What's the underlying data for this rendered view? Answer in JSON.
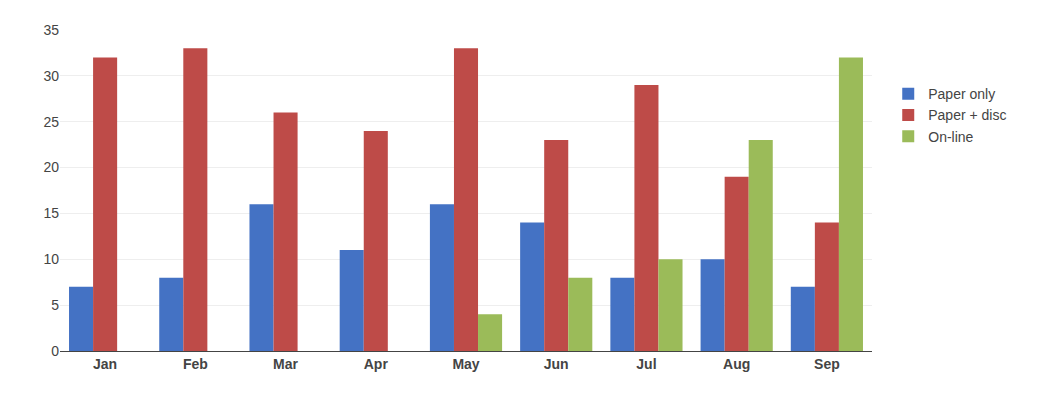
{
  "chart_data": {
    "type": "bar",
    "categories": [
      "Jan",
      "Feb",
      "Mar",
      "Apr",
      "May",
      "Jun",
      "Jul",
      "Aug",
      "Sep"
    ],
    "series": [
      {
        "name": "Paper only",
        "color": "#4472C4",
        "values": [
          7,
          8,
          16,
          11,
          16,
          14,
          8,
          10,
          7
        ]
      },
      {
        "name": "Paper + disc",
        "color": "#BE4B48",
        "values": [
          32,
          33,
          26,
          24,
          33,
          23,
          29,
          19,
          14
        ]
      },
      {
        "name": "On-line",
        "color": "#9BBB59",
        "values": [
          0,
          0,
          0,
          0,
          4,
          8,
          10,
          23,
          32
        ]
      }
    ],
    "ylim": [
      0,
      35
    ],
    "yticks": [
      0,
      5,
      10,
      15,
      20,
      25,
      30,
      35
    ],
    "grid": true,
    "legend": "right"
  }
}
